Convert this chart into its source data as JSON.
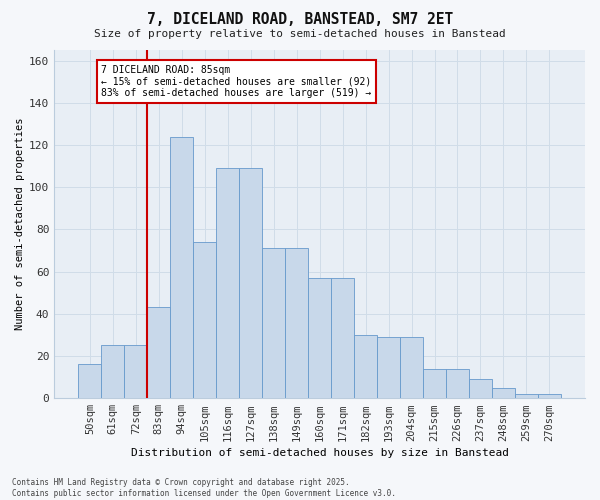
{
  "title": "7, DICELAND ROAD, BANSTEAD, SM7 2ET",
  "subtitle": "Size of property relative to semi-detached houses in Banstead",
  "xlabel": "Distribution of semi-detached houses by size in Banstead",
  "ylabel": "Number of semi-detached properties",
  "categories": [
    "50sqm",
    "61sqm",
    "72sqm",
    "83sqm",
    "94sqm",
    "105sqm",
    "116sqm",
    "127sqm",
    "138sqm",
    "149sqm",
    "160sqm",
    "171sqm",
    "182sqm",
    "193sqm",
    "204sqm",
    "215sqm",
    "226sqm",
    "237sqm",
    "248sqm",
    "259sqm",
    "270sqm"
  ],
  "bar_values": [
    16,
    25,
    25,
    43,
    124,
    74,
    109,
    109,
    71,
    71,
    57,
    57,
    30,
    29,
    29,
    14,
    14,
    9,
    5,
    2,
    2
  ],
  "property_bin_index": 3,
  "annotation_title": "7 DICELAND ROAD: 85sqm",
  "annotation_line1": "← 15% of semi-detached houses are smaller (92)",
  "annotation_line2": "83% of semi-detached houses are larger (519) →",
  "bar_color": "#c8d8ea",
  "bar_edge_color": "#6699cc",
  "vline_color": "#cc0000",
  "annotation_box_color": "#ffffff",
  "annotation_box_edge": "#cc0000",
  "grid_color": "#d0dce8",
  "bg_color": "#e8eef5",
  "fig_bg_color": "#f5f7fa",
  "ylim": [
    0,
    165
  ],
  "yticks": [
    0,
    20,
    40,
    60,
    80,
    100,
    120,
    140,
    160
  ],
  "footer": "Contains HM Land Registry data © Crown copyright and database right 2025.\nContains public sector information licensed under the Open Government Licence v3.0."
}
